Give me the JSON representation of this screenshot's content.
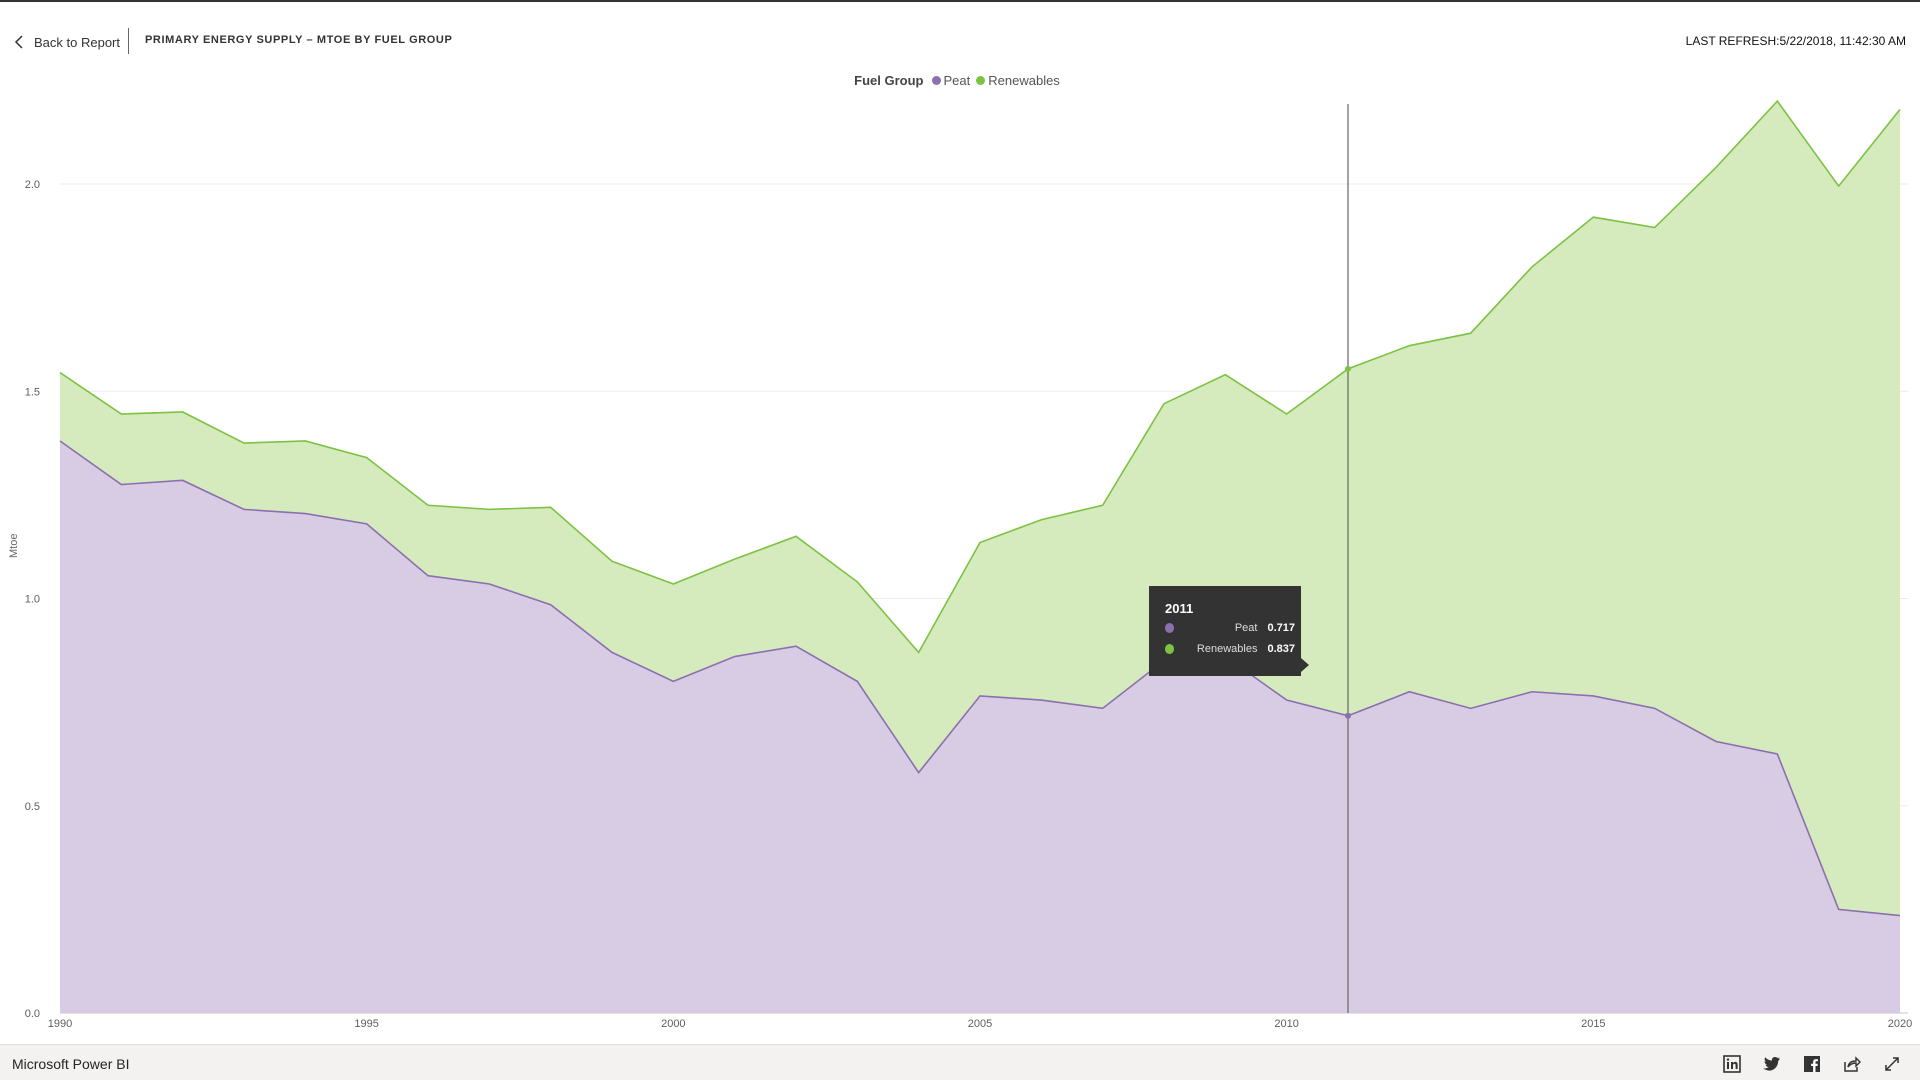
{
  "header": {
    "back_label": "Back to Report",
    "title": "PRIMARY ENERGY SUPPLY – MTOE BY FUEL GROUP",
    "last_refresh": "LAST REFRESH:5/22/2018, 11:42:30 AM"
  },
  "legend": {
    "title": "Fuel Group",
    "items": [
      {
        "label": "Peat",
        "color": "#8C6FAE"
      },
      {
        "label": "Renewables",
        "color": "#7DC242"
      }
    ]
  },
  "tooltip": {
    "year": "2011",
    "rows": [
      {
        "label": "Peat",
        "value": "0.717",
        "color": "#8C6FAE"
      },
      {
        "label": "Renewables",
        "value": "0.837",
        "color": "#7DC242"
      }
    ]
  },
  "footer": {
    "brand": "Microsoft Power BI",
    "icons": [
      "linkedin-icon",
      "twitter-icon",
      "facebook-icon",
      "share-icon",
      "fullscreen-icon"
    ]
  },
  "chart_data": {
    "type": "area",
    "stacked": true,
    "legend_title": "Fuel Group",
    "xlabel": "",
    "ylabel": "Mtoe",
    "xlim": [
      1990,
      2020
    ],
    "ylim": [
      0,
      2.2
    ],
    "x_ticks": [
      1990,
      1995,
      2000,
      2005,
      2010,
      2015,
      2020
    ],
    "y_ticks": [
      "0.0",
      "0.5",
      "1.0",
      "1.5",
      "2.0"
    ],
    "grid": true,
    "legend_position": "top-center",
    "hover_year": 2011,
    "x": [
      1990,
      1991,
      1992,
      1993,
      1994,
      1995,
      1996,
      1997,
      1998,
      1999,
      2000,
      2001,
      2002,
      2003,
      2004,
      2005,
      2006,
      2007,
      2008,
      2009,
      2010,
      2011,
      2012,
      2013,
      2014,
      2015,
      2016,
      2017,
      2018,
      2019,
      2020
    ],
    "series": [
      {
        "name": "Peat",
        "color": "#8C6FAE",
        "fill": "#D7CCE3",
        "values": [
          1.38,
          1.275,
          1.285,
          1.215,
          1.205,
          1.18,
          1.055,
          1.035,
          0.985,
          0.87,
          0.8,
          0.86,
          0.885,
          0.8,
          0.58,
          0.765,
          0.755,
          0.735,
          0.85,
          0.86,
          0.755,
          0.717,
          0.775,
          0.735,
          0.775,
          0.765,
          0.735,
          0.655,
          0.625,
          0.25,
          0.235
        ]
      },
      {
        "name": "Renewables",
        "color": "#7DC242",
        "fill": "#D5EBBE",
        "values": [
          0.165,
          0.17,
          0.165,
          0.16,
          0.175,
          0.16,
          0.17,
          0.18,
          0.235,
          0.22,
          0.235,
          0.235,
          0.265,
          0.24,
          0.29,
          0.37,
          0.435,
          0.49,
          0.62,
          0.68,
          0.69,
          0.837,
          0.835,
          0.905,
          1.025,
          1.155,
          1.16,
          1.385,
          1.575,
          1.745,
          1.945
        ]
      }
    ]
  }
}
